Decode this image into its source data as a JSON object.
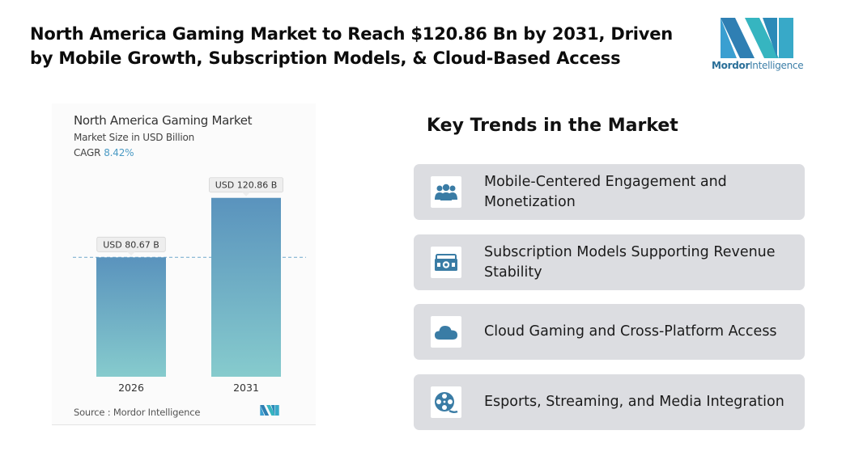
{
  "headline": {
    "line1": "North America Gaming Market to Reach $120.86 Bn by 2031, Driven",
    "line2": "by Mobile Growth, Subscription Models, & Cloud-Based Access"
  },
  "brand": {
    "name_part1": "Mordor",
    "name_part2": "Intelligence",
    "logo_icon": "mordor-intelligence-logo"
  },
  "chart_data": {
    "type": "bar",
    "title": "North America Gaming Market",
    "subtitle": "Market Size in USD Billion",
    "cagr_label": "CAGR",
    "cagr_value": "8.42%",
    "categories": [
      "2026",
      "2031"
    ],
    "values": [
      80.67,
      120.86
    ],
    "data_labels": [
      "USD 80.67 B",
      "USD 120.86 B"
    ],
    "ylim": [
      0,
      130
    ],
    "reference_line": 80.67,
    "grid": false,
    "source": "Source :  Mordor Intelligence",
    "colors": {
      "bar_top": "#5a93bd",
      "bar_bottom": "#86cbcd",
      "ref_line": "#7fb2d2"
    }
  },
  "trends": {
    "heading": "Key Trends in the Market",
    "items": [
      {
        "label": "Mobile-Centered Engagement and Monetization",
        "icon": "users-group-icon"
      },
      {
        "label": "Subscription Models Supporting Revenue Stability",
        "icon": "money-bill-icon"
      },
      {
        "label": "Cloud Gaming and Cross-Platform Access",
        "icon": "cloud-icon"
      },
      {
        "label": "Esports, Streaming, and Media Integration",
        "icon": "film-reel-icon"
      }
    ],
    "icon_color": "#3a7ca5"
  }
}
